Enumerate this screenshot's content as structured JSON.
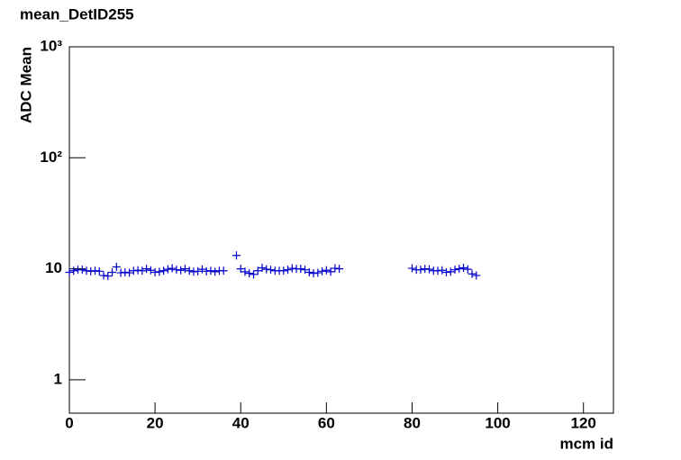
{
  "chart_data": {
    "type": "scatter",
    "title": "mean_DetID255",
    "x_label": "mcm id",
    "y_label": "ADC Mean",
    "log_y": true,
    "color": "#0000cc",
    "xlim": [
      0,
      127
    ],
    "xticks": [
      0,
      20,
      40,
      60,
      80,
      100,
      120
    ],
    "ylim": [
      0.5,
      1000
    ],
    "yticks": [
      1,
      10,
      {
        "value": 100,
        "label": "10²"
      },
      {
        "value": 1000,
        "label": "10³"
      }
    ],
    "series": [
      {
        "name": "mean",
        "color": "#0000cc",
        "x": [
          0,
          1,
          2,
          3,
          4,
          5,
          6,
          7,
          8,
          9,
          10,
          11,
          12,
          13,
          14,
          15,
          16,
          17,
          18,
          19,
          20,
          21,
          22,
          23,
          24,
          25,
          26,
          27,
          28,
          29,
          30,
          31,
          32,
          33,
          34,
          35,
          36,
          39,
          40,
          41,
          42,
          43,
          44,
          45,
          46,
          47,
          48,
          49,
          50,
          51,
          52,
          53,
          54,
          55,
          56,
          57,
          58,
          59,
          60,
          61,
          62,
          63,
          80,
          81,
          82,
          83,
          84,
          85,
          86,
          87,
          88,
          89,
          90,
          91,
          92,
          93,
          94,
          95
        ],
        "values": [
          9.3,
          9.6,
          9.8,
          9.8,
          9.6,
          9.5,
          9.6,
          9.5,
          8.7,
          8.6,
          9.3,
          10.4,
          9.2,
          9.3,
          9.2,
          9.6,
          9.7,
          9.6,
          10.0,
          9.7,
          9.3,
          9.4,
          9.6,
          9.9,
          10.1,
          9.8,
          9.7,
          10.0,
          9.6,
          9.4,
          9.5,
          9.9,
          9.5,
          9.6,
          9.4,
          9.6,
          9.6,
          13.2,
          10.0,
          9.4,
          9.1,
          8.9,
          9.6,
          10.2,
          9.9,
          9.8,
          9.6,
          9.6,
          9.6,
          9.8,
          10.1,
          10.0,
          10.0,
          9.8,
          9.3,
          9.1,
          9.2,
          9.5,
          9.7,
          9.4,
          10.1,
          10.0,
          10.1,
          9.8,
          9.8,
          10.0,
          9.9,
          9.6,
          9.6,
          9.7,
          9.3,
          9.4,
          9.8,
          10.0,
          10.2,
          9.9,
          9.0,
          8.7
        ]
      }
    ]
  }
}
